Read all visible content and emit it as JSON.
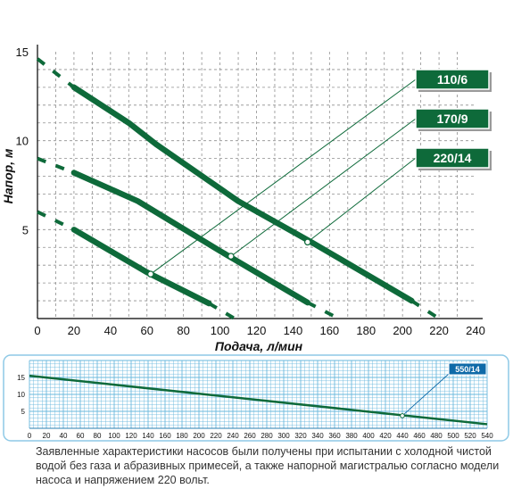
{
  "colors": {
    "curve": "#0e6a3a",
    "grid_main": "#8f8f8f",
    "grid_small": "#6ab8dd",
    "axis": "#000000",
    "label_box": "#0e6a3a",
    "label_box_blue": "#0f6aa8",
    "frame": "#8ec9e6"
  },
  "chart_data": [
    {
      "type": "line",
      "title": "",
      "xlabel": "Подача, л/мин",
      "ylabel": "Напор, м",
      "xlim": [
        0,
        240
      ],
      "ylim": [
        0,
        15
      ],
      "x_ticks": [
        "0",
        "20",
        "40",
        "60",
        "80",
        "100",
        "120",
        "140",
        "160",
        "180",
        "200",
        "220",
        "240"
      ],
      "y_ticks": [
        "5",
        "10",
        "15"
      ],
      "grid": true,
      "series": [
        {
          "name": "110/6",
          "solid": [
            [
              20,
              5.0
            ],
            [
              60,
              2.6
            ],
            [
              94,
              0.85
            ]
          ],
          "dashed_start": [
            [
              0,
              6.0
            ],
            [
              20,
              5.0
            ]
          ],
          "dashed_end": [
            [
              94,
              0.85
            ],
            [
              108,
              0
            ]
          ],
          "marker": [
            62,
            2.5
          ]
        },
        {
          "name": "170/9",
          "solid": [
            [
              20,
              8.2
            ],
            [
              55,
              6.6
            ],
            [
              100,
              3.8
            ],
            [
              148,
              0.9
            ]
          ],
          "dashed_start": [
            [
              0,
              9.0
            ],
            [
              20,
              8.2
            ]
          ],
          "dashed_end": [
            [
              148,
              0.9
            ],
            [
              165,
              0
            ]
          ],
          "marker": [
            106,
            3.5
          ]
        },
        {
          "name": "220/14",
          "solid": [
            [
              20,
              13.0
            ],
            [
              50,
              11.0
            ],
            [
              65,
              9.8
            ],
            [
              110,
              6.6
            ],
            [
              150,
              4.3
            ],
            [
              205,
              1.0
            ]
          ],
          "dashed_start": [
            [
              0,
              14.6
            ],
            [
              20,
              13.0
            ]
          ],
          "dashed_end": [
            [
              205,
              1.0
            ],
            [
              220,
              0
            ]
          ],
          "marker": [
            148,
            4.3
          ]
        }
      ]
    },
    {
      "type": "line",
      "title": "",
      "xlabel": "",
      "ylabel": "",
      "xlim": [
        0,
        540
      ],
      "ylim": [
        0,
        20
      ],
      "x_ticks": [
        "0",
        "20",
        "40",
        "60",
        "80",
        "100",
        "120",
        "140",
        "160",
        "180",
        "200",
        "220",
        "240",
        "260",
        "280",
        "300",
        "320",
        "340",
        "360",
        "380",
        "400",
        "420",
        "440",
        "460",
        "480",
        "500",
        "520",
        "540"
      ],
      "y_ticks": [
        "5",
        "10",
        "15"
      ],
      "grid": true,
      "series": [
        {
          "name": "550/14",
          "points": [
            [
              0,
              15.5
            ],
            [
              540,
              1.2
            ]
          ],
          "marker": [
            440,
            3.7
          ]
        }
      ]
    }
  ],
  "note": "Заявленные характеристики насосов были получены при испытании с холодной чистой водой без газа и абразивных примесей, а также напорной магистралью согласно модели насоса и напряжением 220 вольт."
}
